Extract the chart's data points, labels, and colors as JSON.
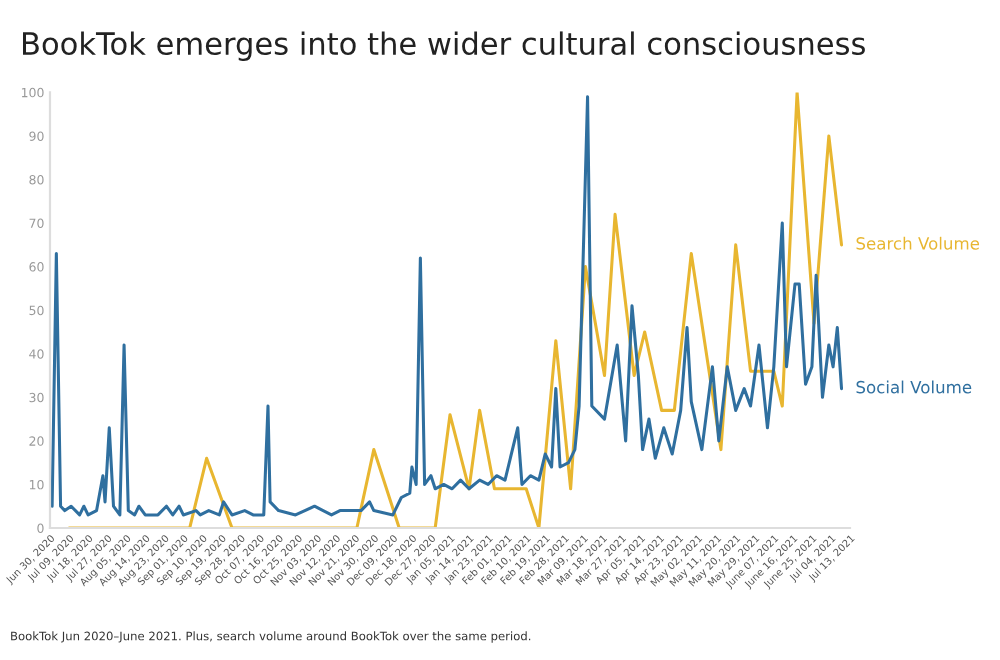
{
  "chart_data": {
    "type": "line",
    "title": "BookTok emerges into the wider cultural consciousness",
    "x": [
      "2020-07-01",
      "2020-07-03",
      "2020-07-05",
      "2020-07-07",
      "2020-07-10",
      "2020-07-14",
      "2020-07-16",
      "2020-07-18",
      "2020-07-22",
      "2020-07-25",
      "2020-07-26",
      "2020-07-28",
      "2020-07-30",
      "2020-08-02",
      "2020-08-04",
      "2020-08-06",
      "2020-08-09",
      "2020-08-11",
      "2020-08-14",
      "2020-08-20",
      "2020-08-24",
      "2020-08-27",
      "2020-08-30",
      "2020-09-01",
      "2020-09-07",
      "2020-09-09",
      "2020-09-13",
      "2020-09-18",
      "2020-09-20",
      "2020-09-24",
      "2020-09-30",
      "2020-10-04",
      "2020-10-09",
      "2020-10-11",
      "2020-10-12",
      "2020-10-16",
      "2020-10-24",
      "2020-11-02",
      "2020-11-10",
      "2020-11-14",
      "2020-11-24",
      "2020-11-28",
      "2020-11-30",
      "2020-12-09",
      "2020-12-13",
      "2020-12-17",
      "2020-12-18",
      "2020-12-20",
      "2020-12-22",
      "2020-12-24",
      "2020-12-27",
      "2020-12-29",
      "2021-01-02",
      "2021-01-06",
      "2021-01-10",
      "2021-01-14",
      "2021-01-19",
      "2021-01-23",
      "2021-01-27",
      "2021-01-31",
      "2021-02-06",
      "2021-02-08",
      "2021-02-12",
      "2021-02-16",
      "2021-02-19",
      "2021-02-22",
      "2021-02-24",
      "2021-02-26",
      "2021-03-02",
      "2021-03-05",
      "2021-03-07",
      "2021-03-11",
      "2021-03-13",
      "2021-03-19",
      "2021-03-25",
      "2021-03-29",
      "2021-04-01",
      "2021-04-04",
      "2021-04-06",
      "2021-04-09",
      "2021-04-12",
      "2021-04-16",
      "2021-04-20",
      "2021-04-24",
      "2021-04-27",
      "2021-04-29",
      "2021-05-04",
      "2021-05-09",
      "2021-05-12",
      "2021-05-16",
      "2021-05-20",
      "2021-05-24",
      "2021-05-27",
      "2021-05-31",
      "2021-06-04",
      "2021-06-07",
      "2021-06-11",
      "2021-06-13",
      "2021-06-17",
      "2021-06-19",
      "2021-06-22",
      "2021-06-25",
      "2021-06-27",
      "2021-06-30",
      "2021-07-03",
      "2021-07-05",
      "2021-07-07",
      "2021-07-09"
    ],
    "series": [
      {
        "name": "Search Volume",
        "color": "#e8b630",
        "x": [
          "2020-07-09",
          "2020-09-04",
          "2020-09-12",
          "2020-09-24",
          "2020-11-22",
          "2020-11-30",
          "2020-12-12",
          "2020-12-29",
          "2021-01-05",
          "2021-01-14",
          "2021-01-19",
          "2021-01-26",
          "2021-02-10",
          "2021-02-16",
          "2021-02-24",
          "2021-03-03",
          "2021-03-10",
          "2021-03-19",
          "2021-03-24",
          "2021-04-02",
          "2021-04-07",
          "2021-04-15",
          "2021-04-21",
          "2021-04-29",
          "2021-05-13",
          "2021-05-20",
          "2021-05-27",
          "2021-06-07",
          "2021-06-11",
          "2021-06-18",
          "2021-06-26",
          "2021-07-03",
          "2021-07-09"
        ],
        "values": [
          0,
          0,
          16,
          0,
          0,
          18,
          0,
          0,
          26,
          9,
          27,
          9,
          9,
          0,
          43,
          9,
          60,
          35,
          72,
          35,
          45,
          27,
          27,
          63,
          18,
          65,
          36,
          36,
          28,
          100,
          47,
          90,
          65
        ]
      },
      {
        "name": "Social Volume",
        "color": "#2f6f9f",
        "values": [
          5,
          63,
          5,
          4,
          5,
          3,
          5,
          3,
          4,
          12,
          6,
          23,
          5,
          3,
          42,
          4,
          3,
          5,
          3,
          3,
          5,
          3,
          5,
          3,
          4,
          3,
          4,
          3,
          6,
          3,
          4,
          3,
          3,
          28,
          6,
          4,
          3,
          5,
          3,
          4,
          4,
          6,
          4,
          3,
          7,
          8,
          14,
          10,
          62,
          10,
          12,
          9,
          10,
          9,
          11,
          9,
          11,
          10,
          12,
          11,
          23,
          10,
          12,
          11,
          17,
          14,
          32,
          14,
          15,
          18,
          28,
          99,
          28,
          25,
          42,
          20,
          51,
          35,
          18,
          25,
          16,
          23,
          17,
          27,
          46,
          29,
          18,
          37,
          20,
          37,
          27,
          32,
          28,
          42,
          23,
          37,
          70,
          37,
          56,
          56,
          33,
          37,
          58,
          30,
          42,
          37,
          46,
          32
        ]
      }
    ],
    "xlim": [
      "2020-06-30",
      "2021-07-13"
    ],
    "xticks": [
      {
        "value": "2020-06-30",
        "label": "Jun 30, 2020"
      },
      {
        "value": "2020-07-09",
        "label": "Jul 09, 2020"
      },
      {
        "value": "2020-07-18",
        "label": "Jul 18, 2020"
      },
      {
        "value": "2020-07-27",
        "label": "Jul 27, 2020"
      },
      {
        "value": "2020-08-05",
        "label": "Aug 05, 2020"
      },
      {
        "value": "2020-08-14",
        "label": "Aug 14, 2020"
      },
      {
        "value": "2020-08-23",
        "label": "Aug 23, 2020"
      },
      {
        "value": "2020-09-01",
        "label": "Sep 01, 2020"
      },
      {
        "value": "2020-09-10",
        "label": "Sep 10, 2020"
      },
      {
        "value": "2020-09-19",
        "label": "Sep 19, 2020"
      },
      {
        "value": "2020-09-28",
        "label": "Sep 28, 2020"
      },
      {
        "value": "2020-10-07",
        "label": "Oct 07, 2020"
      },
      {
        "value": "2020-10-16",
        "label": "Oct 16, 2020"
      },
      {
        "value": "2020-10-25",
        "label": "Oct 25, 2020"
      },
      {
        "value": "2020-11-03",
        "label": "Nov 03, 2020"
      },
      {
        "value": "2020-11-12",
        "label": "Nov 12, 2020"
      },
      {
        "value": "2020-11-21",
        "label": "Nov 21, 2020"
      },
      {
        "value": "2020-11-30",
        "label": "Nov 30, 2020"
      },
      {
        "value": "2020-12-09",
        "label": "Dec 09, 2020"
      },
      {
        "value": "2020-12-18",
        "label": "Dec 18, 2020"
      },
      {
        "value": "2020-12-27",
        "label": "Dec 27, 2020"
      },
      {
        "value": "2021-01-05",
        "label": "Jan 05, 2021"
      },
      {
        "value": "2021-01-14",
        "label": "Jan 14, 2021"
      },
      {
        "value": "2021-01-23",
        "label": "Jan 23, 2021"
      },
      {
        "value": "2021-02-01",
        "label": "Feb 01, 2021"
      },
      {
        "value": "2021-02-10",
        "label": "Feb 10, 2021"
      },
      {
        "value": "2021-02-19",
        "label": "Feb 19, 2021"
      },
      {
        "value": "2021-02-28",
        "label": "Feb 28, 2021"
      },
      {
        "value": "2021-03-09",
        "label": "Mar 09, 2021"
      },
      {
        "value": "2021-03-18",
        "label": "Mar 18, 2021"
      },
      {
        "value": "2021-03-27",
        "label": "Mar 27, 2021"
      },
      {
        "value": "2021-04-05",
        "label": "Apr 05, 2021"
      },
      {
        "value": "2021-04-14",
        "label": "Apr 14, 2021"
      },
      {
        "value": "2021-04-23",
        "label": "Apr 23, 2021"
      },
      {
        "value": "2021-05-02",
        "label": "May 02, 2021"
      },
      {
        "value": "2021-05-11",
        "label": "May 11, 2021"
      },
      {
        "value": "2021-05-20",
        "label": "May 20, 2021"
      },
      {
        "value": "2021-05-29",
        "label": "May 29, 2021"
      },
      {
        "value": "2021-06-07",
        "label": "June 07, 2021"
      },
      {
        "value": "2021-06-16",
        "label": "June 16, 2021"
      },
      {
        "value": "2021-06-25",
        "label": "June 25, 2021"
      },
      {
        "value": "2021-07-04",
        "label": "Jul 04, 2021"
      },
      {
        "value": "2021-07-13",
        "label": "Jul 13, 2021"
      }
    ],
    "ylim": [
      0,
      100
    ],
    "yticks": [
      0,
      10,
      20,
      30,
      40,
      50,
      60,
      70,
      80,
      90,
      100
    ],
    "annotations": [
      "BookTok Jun 2020–June 2021. Plus, search volume around BookTok over the same period."
    ]
  }
}
